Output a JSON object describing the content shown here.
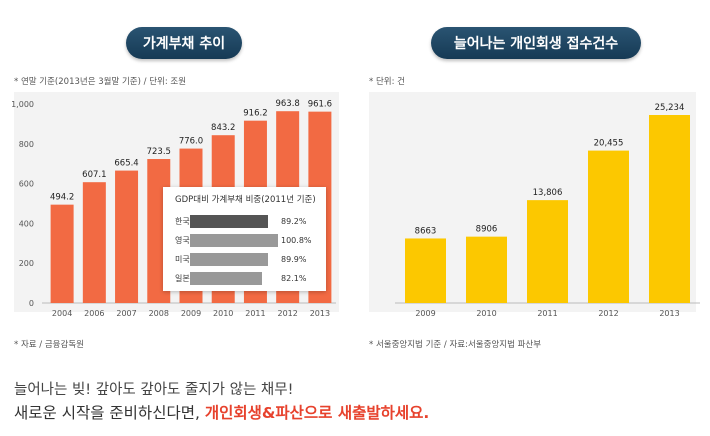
{
  "left_chart": {
    "title": "가계부채 추이",
    "unit_note": "* 연말 기준(2013년은 3월말 기준) / 단위: 조원",
    "source_note": "* 자료 / 금융감독원"
  },
  "right_chart": {
    "title": "늘어나는 개인회생 접수건수",
    "unit_note": "* 단위: 건",
    "source_note": "* 서울중앙지법 기준 / 자료:서울중앙지법 파산부"
  },
  "inset": {
    "title": "GDP대비 가계부채 비중(2011년 기준)",
    "rows": [
      {
        "country": "한국",
        "pct": "89.2%",
        "value": 89.2
      },
      {
        "country": "영국",
        "pct": "100.8%",
        "value": 100.8
      },
      {
        "country": "미국",
        "pct": "89.9%",
        "value": 89.9
      },
      {
        "country": "일본",
        "pct": "82.1%",
        "value": 82.1
      }
    ]
  },
  "footer": {
    "line1": "늘어나는 빚! 갚아도 갚아도 줄지가 않는 채무!",
    "line2_prefix": "새로운 시작을 준비하신다면, ",
    "line2_highlight": "개인회생&파산으로 새출발하세요."
  },
  "colors": {
    "left_bars": "#f26a43",
    "right_bars": "#fcc800",
    "inset_highlight": "#555555",
    "inset_bars": "#999999",
    "footer_highlight": "#e7422d"
  },
  "chart_data": [
    {
      "type": "bar",
      "title": "가계부채 추이",
      "categories": [
        "2004",
        "2006",
        "2007",
        "2008",
        "2009",
        "2010",
        "2011",
        "2012",
        "2013"
      ],
      "values": [
        494.2,
        607.1,
        665.4,
        723.5,
        776.0,
        843.2,
        916.2,
        963.8,
        961.6
      ],
      "value_labels": [
        "494.2",
        "607.1",
        "665.4",
        "723.5",
        "776.0",
        "843.2",
        "916.2",
        "963.8",
        "961.6"
      ],
      "ylim": [
        0,
        1000
      ],
      "yticks": [
        0,
        200,
        400,
        600,
        800,
        1000
      ],
      "ytick_labels": [
        "0",
        "200",
        "400",
        "600",
        "800",
        "1,000"
      ],
      "grid": false
    },
    {
      "type": "bar",
      "title": "늘어나는 개인회생 접수건수",
      "categories": [
        "2009",
        "2010",
        "2011",
        "2012",
        "2013"
      ],
      "values": [
        8663,
        8906,
        13806,
        20455,
        25234
      ],
      "value_labels": [
        "8663",
        "8906",
        "13,806",
        "20,455",
        "25,234"
      ],
      "ylim": [
        0,
        30000
      ],
      "grid": false
    }
  ]
}
